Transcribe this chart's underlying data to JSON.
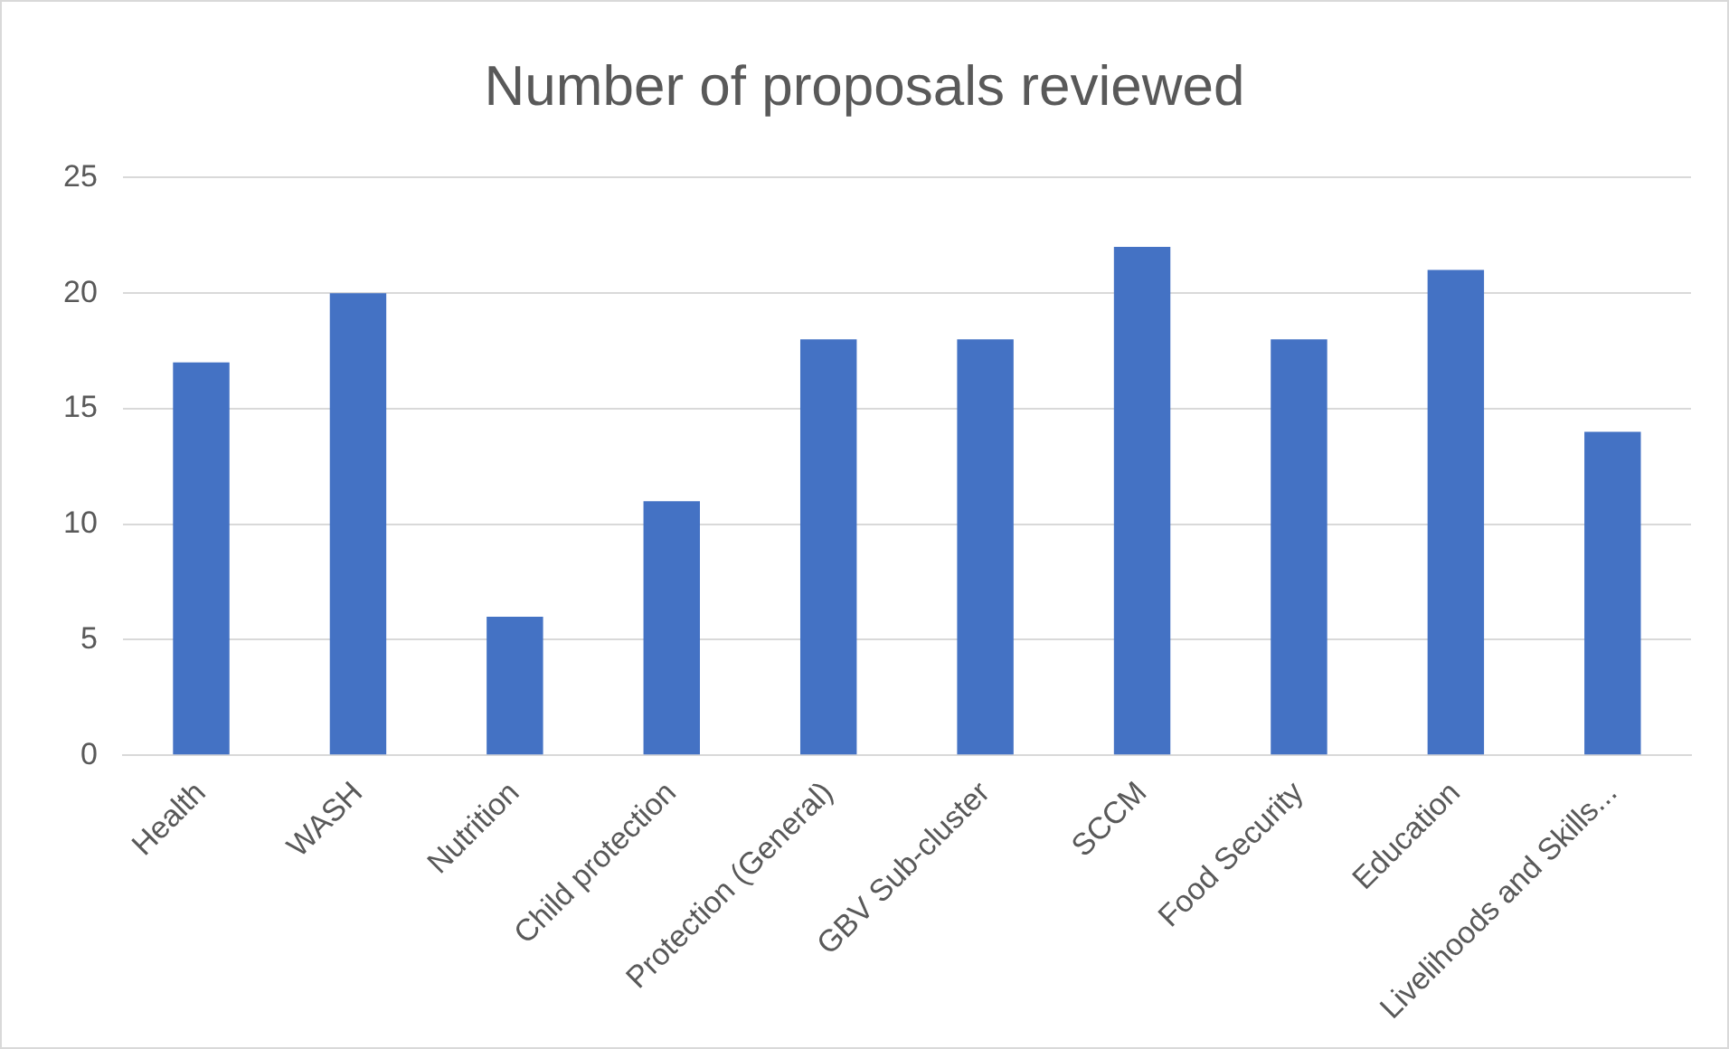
{
  "chart_data": {
    "type": "bar",
    "title": "Number of proposals reviewed",
    "categories": [
      "Health",
      "WASH",
      "Nutrition",
      "Child protection",
      "Protection (General)",
      "GBV Sub-cluster",
      "SCCM",
      "Food Security",
      "Education",
      "Livelihoods and Skills..."
    ],
    "values": [
      17,
      20,
      6,
      11,
      18,
      18,
      22,
      18,
      21,
      14
    ],
    "color": "#4472c4",
    "ylim": [
      0,
      25
    ],
    "yticks": [
      0,
      5,
      10,
      15,
      20,
      25
    ],
    "grid": "y"
  }
}
